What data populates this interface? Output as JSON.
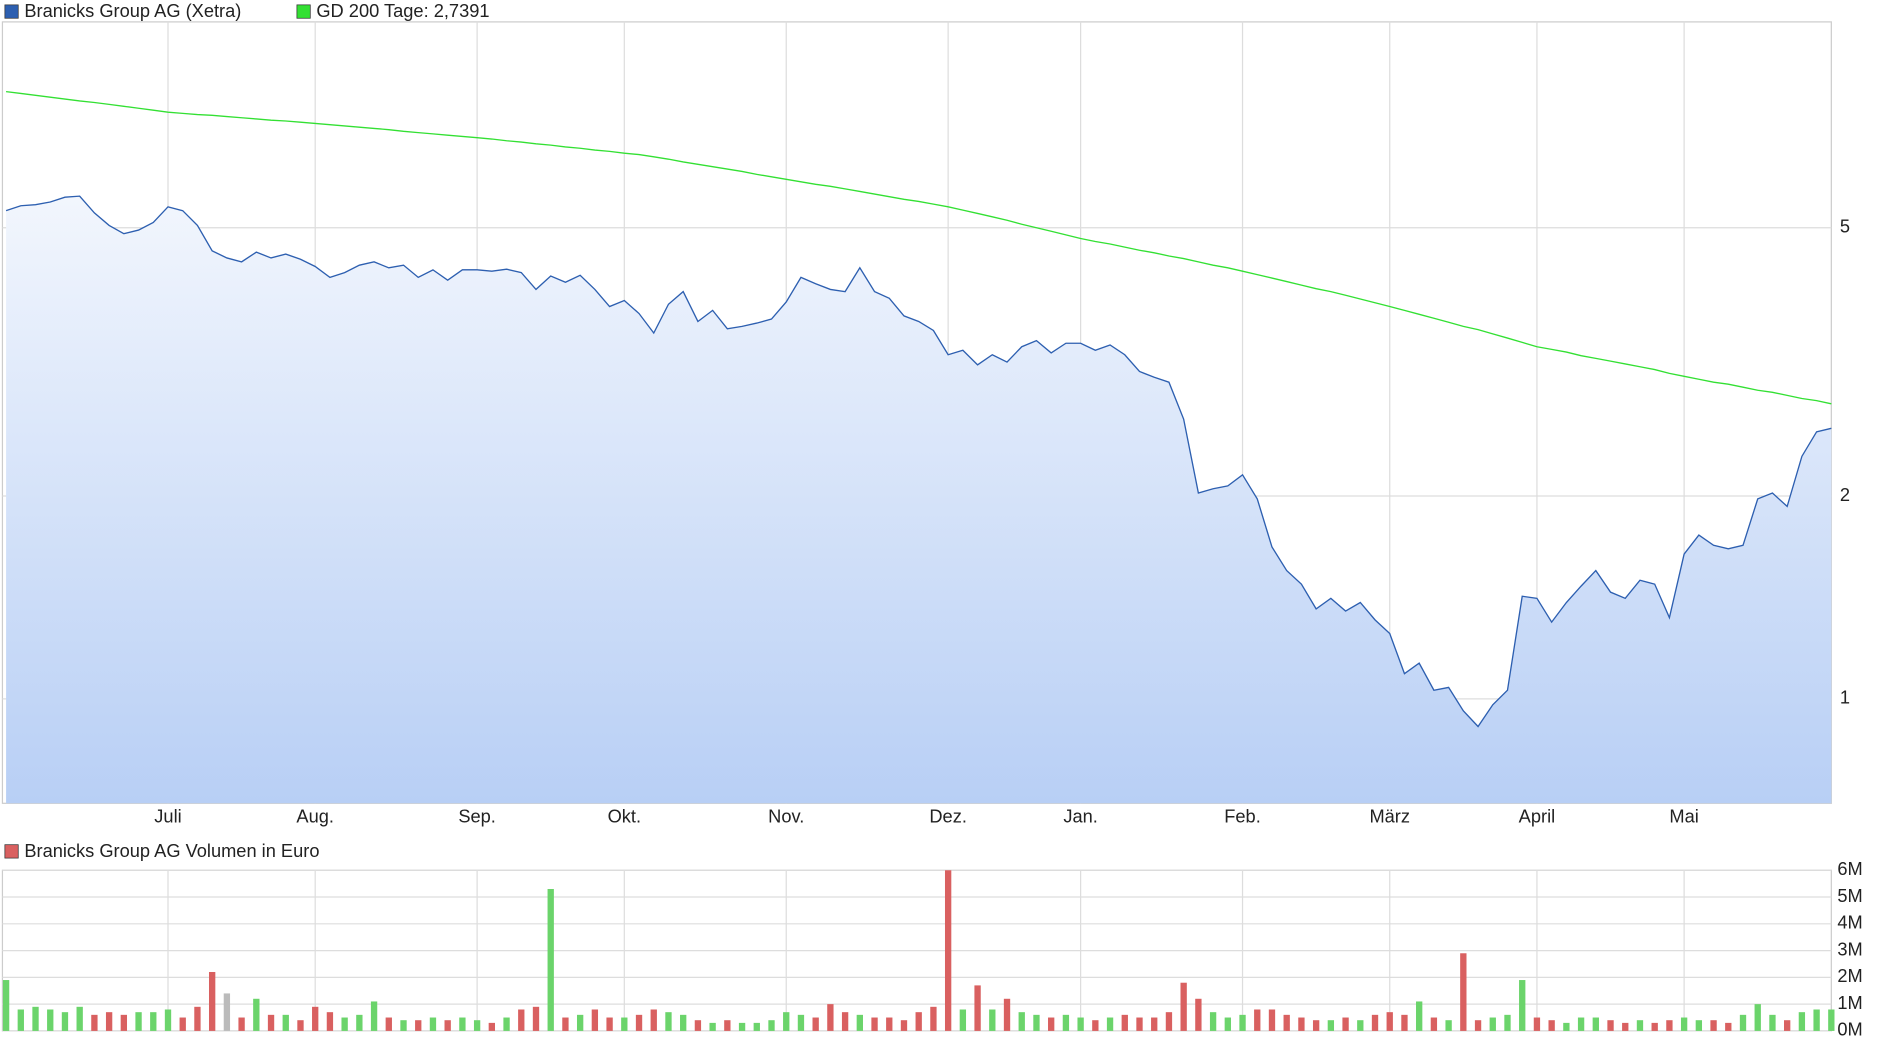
{
  "chart_data": [
    {
      "type": "line",
      "log_y": true,
      "grid": true,
      "categories": [
        null,
        null,
        null,
        null,
        null,
        null,
        null,
        null,
        null,
        null,
        null,
        "Juli",
        null,
        null,
        null,
        null,
        null,
        null,
        null,
        null,
        null,
        "Aug.",
        null,
        null,
        null,
        null,
        null,
        null,
        null,
        null,
        null,
        null,
        "Sep.",
        null,
        null,
        null,
        null,
        null,
        null,
        null,
        null,
        null,
        "Okt.",
        null,
        null,
        null,
        null,
        null,
        null,
        null,
        null,
        null,
        null,
        "Nov.",
        null,
        null,
        null,
        null,
        null,
        null,
        null,
        null,
        null,
        null,
        "Dez.",
        null,
        null,
        null,
        null,
        null,
        null,
        null,
        null,
        "Jan.",
        null,
        null,
        null,
        null,
        null,
        null,
        null,
        null,
        null,
        null,
        "Feb.",
        null,
        null,
        null,
        null,
        null,
        null,
        null,
        null,
        null,
        "März",
        null,
        null,
        null,
        null,
        null,
        null,
        null,
        null,
        null,
        "April",
        null,
        null,
        null,
        null,
        null,
        null,
        null,
        null,
        null,
        "Mai",
        null,
        null,
        null,
        null,
        null,
        null,
        null,
        null,
        null,
        null
      ],
      "ylim": [
        0.7,
        10.1
      ],
      "yticks": [
        1,
        2,
        5
      ],
      "series": [
        {
          "name": "Branicks Group AG (Xetra)",
          "color": "#2d5fb0",
          "values": [
            5.3,
            5.39,
            5.41,
            5.46,
            5.55,
            5.57,
            5.26,
            5.04,
            4.9,
            4.96,
            5.09,
            5.37,
            5.3,
            5.04,
            4.62,
            4.51,
            4.45,
            4.6,
            4.51,
            4.57,
            4.49,
            4.38,
            4.22,
            4.29,
            4.4,
            4.45,
            4.36,
            4.4,
            4.22,
            4.33,
            4.18,
            4.33,
            4.33,
            4.31,
            4.34,
            4.29,
            4.05,
            4.24,
            4.15,
            4.25,
            4.05,
            3.82,
            3.9,
            3.73,
            3.49,
            3.85,
            4.02,
            3.63,
            3.77,
            3.54,
            3.57,
            3.61,
            3.66,
            3.88,
            4.22,
            4.13,
            4.05,
            4.02,
            4.36,
            4.02,
            3.93,
            3.7,
            3.63,
            3.52,
            3.24,
            3.29,
            3.13,
            3.24,
            3.16,
            3.33,
            3.4,
            3.26,
            3.37,
            3.37,
            3.29,
            3.35,
            3.24,
            3.06,
            3.0,
            2.95,
            2.6,
            2.02,
            2.05,
            2.07,
            2.15,
            1.98,
            1.68,
            1.55,
            1.48,
            1.36,
            1.41,
            1.35,
            1.39,
            1.31,
            1.25,
            1.09,
            1.13,
            1.03,
            1.04,
            0.96,
            0.91,
            0.98,
            1.03,
            1.42,
            1.41,
            1.3,
            1.39,
            1.47,
            1.55,
            1.44,
            1.41,
            1.5,
            1.48,
            1.32,
            1.64,
            1.75,
            1.69,
            1.67,
            1.69,
            1.98,
            2.02,
            1.93,
            2.29,
            2.49,
            2.52
          ]
        },
        {
          "name": "GD 200 Tage: 2,7391",
          "color": "#33e033",
          "values": [
            7.96,
            7.91,
            7.86,
            7.81,
            7.76,
            7.71,
            7.67,
            7.62,
            7.57,
            7.52,
            7.47,
            7.42,
            7.39,
            7.36,
            7.34,
            7.31,
            7.28,
            7.25,
            7.22,
            7.2,
            7.17,
            7.14,
            7.11,
            7.08,
            7.05,
            7.02,
            6.99,
            6.95,
            6.92,
            6.89,
            6.86,
            6.83,
            6.8,
            6.77,
            6.73,
            6.7,
            6.66,
            6.63,
            6.59,
            6.56,
            6.52,
            6.49,
            6.45,
            6.42,
            6.37,
            6.32,
            6.26,
            6.21,
            6.16,
            6.11,
            6.06,
            6.0,
            5.95,
            5.9,
            5.85,
            5.8,
            5.76,
            5.71,
            5.66,
            5.61,
            5.56,
            5.51,
            5.47,
            5.42,
            5.37,
            5.31,
            5.25,
            5.19,
            5.13,
            5.06,
            5.0,
            4.94,
            4.88,
            4.82,
            4.77,
            4.73,
            4.68,
            4.63,
            4.59,
            4.54,
            4.5,
            4.45,
            4.4,
            4.36,
            4.31,
            4.26,
            4.21,
            4.16,
            4.11,
            4.06,
            4.02,
            3.97,
            3.92,
            3.87,
            3.82,
            3.77,
            3.72,
            3.67,
            3.62,
            3.57,
            3.53,
            3.48,
            3.43,
            3.38,
            3.33,
            3.3,
            3.27,
            3.23,
            3.2,
            3.17,
            3.14,
            3.11,
            3.08,
            3.04,
            3.01,
            2.98,
            2.95,
            2.93,
            2.9,
            2.87,
            2.85,
            2.82,
            2.79,
            2.77,
            2.74
          ]
        }
      ]
    },
    {
      "type": "bar",
      "grid": true,
      "ylim": [
        0,
        6
      ],
      "yticks": [
        {
          "value": 0,
          "label": "0M"
        },
        {
          "value": 1,
          "label": "1M"
        },
        {
          "value": 2,
          "label": "2M"
        },
        {
          "value": 3,
          "label": "3M"
        },
        {
          "value": 4,
          "label": "4M"
        },
        {
          "value": 5,
          "label": "5M"
        },
        {
          "value": 6,
          "label": "6M"
        }
      ],
      "series": [
        {
          "name": "Branicks Group AG Volumen in Euro",
          "color": "#d96060",
          "values": [
            1.9,
            0.8,
            0.9,
            0.8,
            0.7,
            0.9,
            0.6,
            0.7,
            0.6,
            0.7,
            0.7,
            0.8,
            0.5,
            0.9,
            2.2,
            1.4,
            0.5,
            1.2,
            0.6,
            0.6,
            0.4,
            0.9,
            0.7,
            0.5,
            0.6,
            1.1,
            0.5,
            0.4,
            0.4,
            0.5,
            0.4,
            0.5,
            0.4,
            0.3,
            0.5,
            0.8,
            0.9,
            5.3,
            0.5,
            0.6,
            0.8,
            0.5,
            0.5,
            0.6,
            0.8,
            0.7,
            0.6,
            0.4,
            0.3,
            0.4,
            0.3,
            0.3,
            0.4,
            0.7,
            0.6,
            0.5,
            1.0,
            0.7,
            0.6,
            0.5,
            0.5,
            0.4,
            0.7,
            0.9,
            6.0,
            0.8,
            1.7,
            0.8,
            1.2,
            0.7,
            0.6,
            0.5,
            0.6,
            0.5,
            0.4,
            0.5,
            0.6,
            0.5,
            0.5,
            0.7,
            1.8,
            1.2,
            0.7,
            0.5,
            0.6,
            0.8,
            0.8,
            0.6,
            0.5,
            0.4,
            0.4,
            0.5,
            0.4,
            0.6,
            0.7,
            0.6,
            1.1,
            0.5,
            0.4,
            2.9,
            0.4,
            0.5,
            0.6,
            1.9,
            0.5,
            0.4,
            0.3,
            0.5,
            0.5,
            0.4,
            0.3,
            0.4,
            0.3,
            0.4,
            0.5,
            0.4,
            0.4,
            0.3,
            0.6,
            1.0,
            0.6,
            0.4,
            0.7,
            0.8,
            0.8
          ],
          "bar_colors": [
            "#6bd46b",
            "#6bd46b",
            "#6bd46b",
            "#6bd46b",
            "#6bd46b",
            "#6bd46b",
            "#d96060",
            "#d96060",
            "#d96060",
            "#6bd46b",
            "#6bd46b",
            "#6bd46b",
            "#d96060",
            "#d96060",
            "#d96060",
            "#bbbbbb",
            "#d96060",
            "#6bd46b",
            "#d96060",
            "#6bd46b",
            "#d96060",
            "#d96060",
            "#d96060",
            "#6bd46b",
            "#6bd46b",
            "#6bd46b",
            "#d96060",
            "#6bd46b",
            "#d96060",
            "#6bd46b",
            "#d96060",
            "#6bd46b",
            "#6bd46b",
            "#d96060",
            "#6bd46b",
            "#d96060",
            "#d96060",
            "#6bd46b",
            "#d96060",
            "#6bd46b",
            "#d96060",
            "#d96060",
            "#6bd46b",
            "#d96060",
            "#d96060",
            "#6bd46b",
            "#6bd46b",
            "#d96060",
            "#6bd46b",
            "#d96060",
            "#6bd46b",
            "#6bd46b",
            "#6bd46b",
            "#6bd46b",
            "#6bd46b",
            "#d96060",
            "#d96060",
            "#d96060",
            "#6bd46b",
            "#d96060",
            "#d96060",
            "#d96060",
            "#d96060",
            "#d96060",
            "#d96060",
            "#6bd46b",
            "#d96060",
            "#6bd46b",
            "#d96060",
            "#6bd46b",
            "#6bd46b",
            "#d96060",
            "#6bd46b",
            "#6bd46b",
            "#d96060",
            "#6bd46b",
            "#d96060",
            "#d96060",
            "#d96060",
            "#d96060",
            "#d96060",
            "#d96060",
            "#6bd46b",
            "#6bd46b",
            "#6bd46b",
            "#d96060",
            "#d96060",
            "#d96060",
            "#d96060",
            "#d96060",
            "#6bd46b",
            "#d96060",
            "#6bd46b",
            "#d96060",
            "#d96060",
            "#d96060",
            "#6bd46b",
            "#d96060",
            "#6bd46b",
            "#d96060",
            "#d96060",
            "#6bd46b",
            "#6bd46b",
            "#6bd46b",
            "#d96060",
            "#d96060",
            "#6bd46b",
            "#6bd46b",
            "#6bd46b",
            "#d96060",
            "#d96060",
            "#6bd46b",
            "#d96060",
            "#d96060",
            "#6bd46b",
            "#6bd46b",
            "#d96060",
            "#d96060",
            "#6bd46b",
            "#6bd46b",
            "#6bd46b",
            "#d96060",
            "#6bd46b",
            "#6bd46b",
            "#6bd46b"
          ]
        }
      ]
    }
  ]
}
